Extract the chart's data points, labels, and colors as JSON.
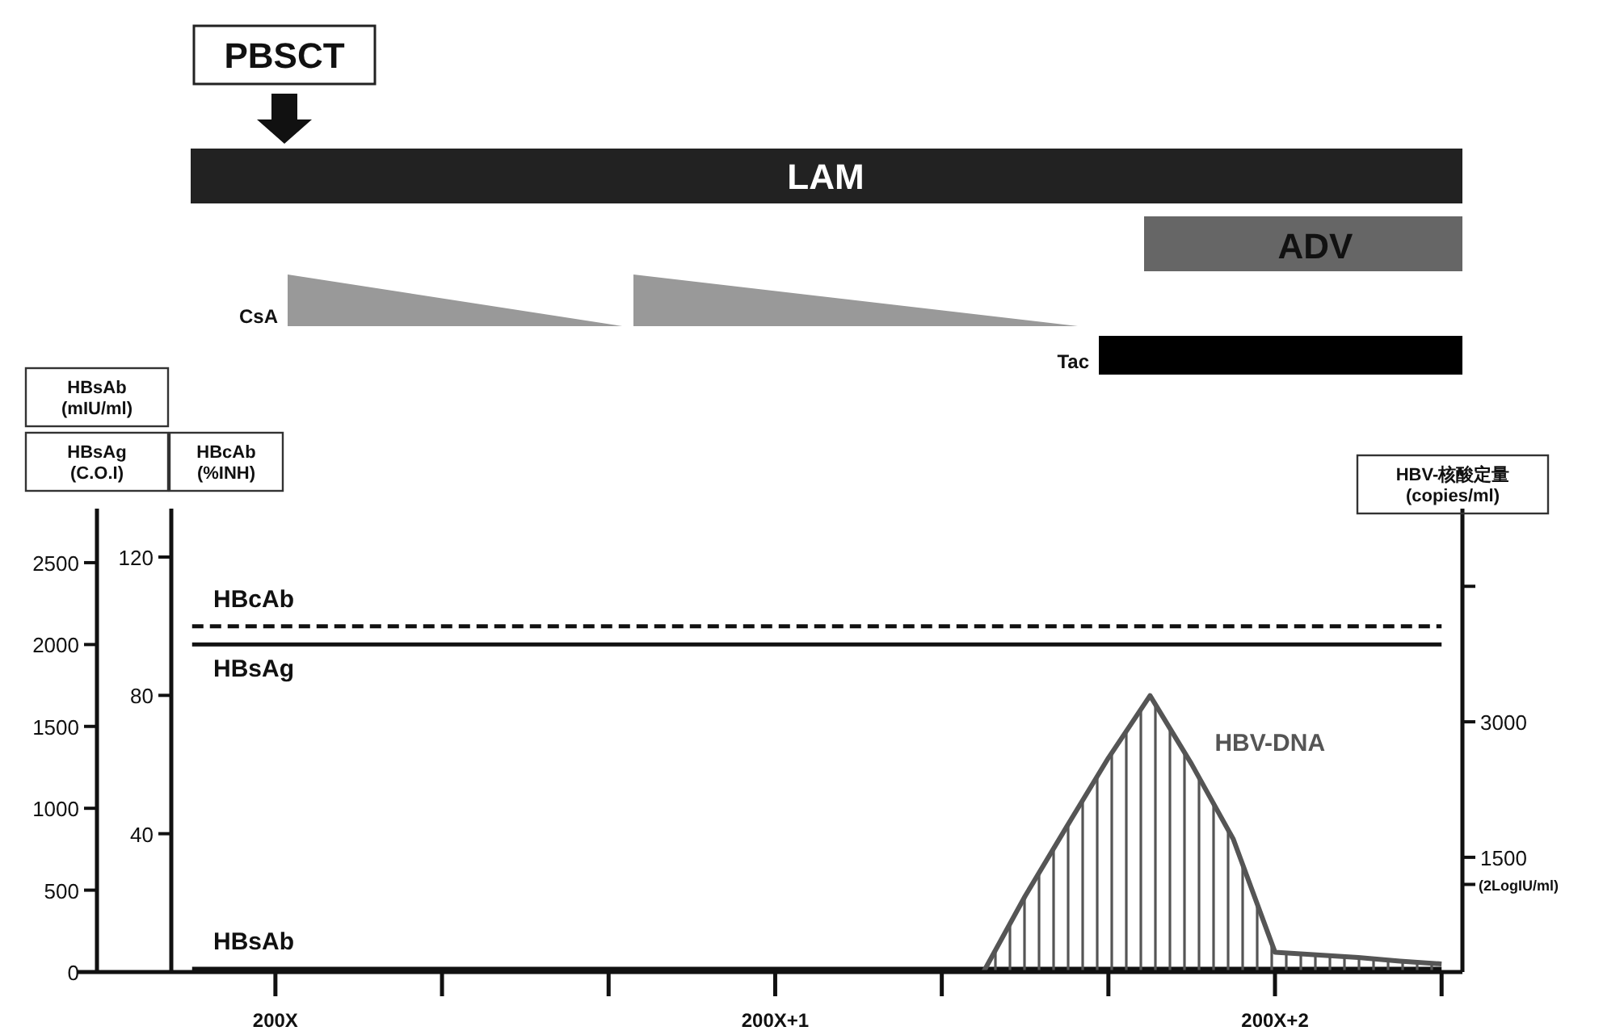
{
  "chart_data": [
    {
      "type": "other",
      "annotations": [
        "PBSCT",
        "LAM",
        "ADV",
        "CsA",
        "Tac"
      ]
    },
    {
      "type": "line",
      "categories": [
        null,
        null,
        "200X",
        null,
        null,
        null,
        null,
        null,
        null,
        null,
        null,
        null,
        null,
        null,
        "200X+1",
        null,
        null,
        null,
        null,
        null,
        null,
        null,
        null,
        null,
        null,
        null,
        "200X+2",
        null,
        null,
        null,
        null
      ],
      "series": [
        {
          "name": "HBcAb",
          "type": "line",
          "axis": "y2",
          "line_style": "dashed",
          "color": "#111111",
          "values": [
            100,
            100,
            100,
            100,
            100,
            100,
            100,
            100,
            100,
            100,
            100,
            100,
            100,
            100,
            100,
            100,
            100,
            100,
            100,
            100,
            100,
            100,
            100,
            100,
            100,
            100,
            100,
            100,
            100,
            100,
            100
          ]
        },
        {
          "name": "HBsAg",
          "type": "line",
          "line_style": "solid",
          "color": "#111111",
          "values": [
            2000,
            2000,
            2000,
            2000,
            2000,
            2000,
            2000,
            2000,
            2000,
            2000,
            2000,
            2000,
            2000,
            2000,
            2000,
            2000,
            2000,
            2000,
            2000,
            2000,
            2000,
            2000,
            2000,
            2000,
            2000,
            2000,
            2000,
            2000,
            2000,
            2000,
            2000
          ]
        },
        {
          "name": "HBsAb",
          "type": "line",
          "line_style": "solid",
          "color": "#111111",
          "values": [
            20,
            20,
            20,
            20,
            20,
            20,
            20,
            20,
            20,
            20,
            20,
            20,
            20,
            20,
            20,
            20,
            20,
            20,
            20,
            20,
            20,
            20,
            20,
            20,
            20,
            20,
            20,
            20,
            20,
            20,
            20
          ]
        },
        {
          "name": "HBV-DNA",
          "type": "area",
          "axis": "y3",
          "color": "#555555",
          "values": [
            null,
            null,
            null,
            null,
            null,
            null,
            null,
            null,
            null,
            null,
            null,
            null,
            null,
            null,
            null,
            null,
            null,
            null,
            null,
            230,
            1070,
            1840,
            2600,
            3290,
            2530,
            1700,
            450,
            420,
            390,
            350,
            320
          ]
        }
      ],
      "ylabel": [
        "HBsAb\n(mIU/ml)",
        "HBsAg\n(C.O.I)"
      ],
      "ylim": [
        0,
        2830
      ],
      "yticks": [
        0,
        500,
        1000,
        1500,
        2000,
        2500
      ],
      "y2label": "HBcAb\n(%INH)",
      "y2lim": [
        0,
        134
      ],
      "y2ticks": [
        40,
        80,
        120
      ],
      "y3label": "HBV-核酸定量\n(copies/ml)",
      "y3lim": [
        230,
        5360
      ],
      "y3ticks": [
        {
          "value": 4500,
          "label": null
        },
        3000,
        1500
      ],
      "ref_lines": [
        {
          "axis": "y3",
          "value": 1200,
          "label": "(2LogIU/ml)"
        }
      ]
    }
  ]
}
